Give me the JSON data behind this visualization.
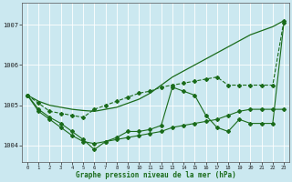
{
  "title": "Graphe pression niveau de la mer (hPa)",
  "background_color": "#cbe8f0",
  "grid_color": "#ffffff",
  "line_color": "#1a6b1a",
  "xlim": [
    -0.5,
    23.5
  ],
  "ylim": [
    1003.6,
    1007.55
  ],
  "yticks": [
    1004,
    1005,
    1006,
    1007
  ],
  "xticks": [
    0,
    1,
    2,
    3,
    4,
    5,
    6,
    7,
    8,
    9,
    10,
    11,
    12,
    13,
    14,
    15,
    16,
    17,
    18,
    19,
    20,
    21,
    22,
    23
  ],
  "series": [
    {
      "x": [
        0,
        1,
        2,
        3,
        4,
        5,
        6,
        7,
        8,
        9,
        10,
        11,
        12,
        13,
        14,
        15,
        16,
        17,
        18,
        19,
        20,
        21,
        22,
        23
      ],
      "y": [
        1005.25,
        1005.1,
        1005.0,
        1004.95,
        1004.9,
        1004.87,
        1004.85,
        1004.9,
        1004.95,
        1005.05,
        1005.15,
        1005.3,
        1005.5,
        1005.7,
        1005.85,
        1006.0,
        1006.15,
        1006.3,
        1006.45,
        1006.6,
        1006.75,
        1006.85,
        1006.95,
        1007.1
      ],
      "marker": null,
      "linewidth": 0.9,
      "linestyle": "-"
    },
    {
      "x": [
        0,
        1,
        2,
        3,
        4,
        5,
        6,
        7,
        8,
        9,
        10,
        11,
        12,
        13,
        14,
        15,
        16,
        17,
        18,
        19,
        20,
        21,
        22,
        23
      ],
      "y": [
        1005.25,
        1005.05,
        1004.85,
        1004.8,
        1004.75,
        1004.7,
        1004.9,
        1005.0,
        1005.1,
        1005.2,
        1005.3,
        1005.35,
        1005.45,
        1005.5,
        1005.55,
        1005.6,
        1005.65,
        1005.7,
        1005.5,
        1005.5,
        1005.5,
        1005.5,
        1005.5,
        1007.1
      ],
      "marker": "D",
      "markersize": 2.0,
      "linewidth": 0.8,
      "linestyle": "--"
    },
    {
      "x": [
        0,
        1,
        2,
        3,
        4,
        5,
        6,
        7,
        8,
        9,
        10,
        11,
        12,
        13,
        14,
        15,
        16,
        17,
        18,
        19,
        20,
        21,
        22,
        23
      ],
      "y": [
        1005.25,
        1004.9,
        1004.7,
        1004.55,
        1004.35,
        1004.15,
        1003.9,
        1004.1,
        1004.2,
        1004.35,
        1004.35,
        1004.4,
        1004.5,
        1005.45,
        1005.35,
        1005.25,
        1004.75,
        1004.45,
        1004.35,
        1004.65,
        1004.55,
        1004.55,
        1004.55,
        1007.05
      ],
      "marker": "D",
      "markersize": 2.0,
      "linewidth": 0.8,
      "linestyle": "-"
    },
    {
      "x": [
        0,
        1,
        2,
        3,
        4,
        5,
        6,
        7,
        8,
        9,
        10,
        11,
        12,
        13,
        14,
        15,
        16,
        17,
        18,
        19,
        20,
        21,
        22,
        23
      ],
      "y": [
        1005.25,
        1004.85,
        1004.65,
        1004.45,
        1004.25,
        1004.1,
        1004.05,
        1004.1,
        1004.15,
        1004.2,
        1004.25,
        1004.3,
        1004.35,
        1004.45,
        1004.5,
        1004.55,
        1004.6,
        1004.65,
        1004.75,
        1004.85,
        1004.9,
        1004.9,
        1004.9,
        1004.9
      ],
      "marker": "D",
      "markersize": 2.0,
      "linewidth": 0.8,
      "linestyle": "-"
    }
  ]
}
